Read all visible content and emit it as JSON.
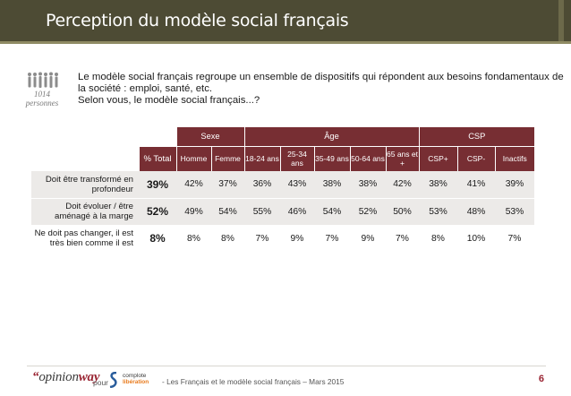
{
  "title": "Perception du modèle social français",
  "sample": {
    "count": "1014",
    "unit": "personnes"
  },
  "question": {
    "intro": "Le modèle social français regroupe un ensemble de dispositifs qui répondent aux besoins fondamentaux de la société : emploi, santé, etc.",
    "ask": "Selon vous, le modèle social français...?"
  },
  "table": {
    "groups": [
      "Sexe",
      "Âge",
      "CSP"
    ],
    "total_label": "% Total",
    "columns": [
      "Homme",
      "Femme",
      "18-24 ans",
      "25-34 ans",
      "35-49 ans",
      "50-64 ans",
      "65 ans et +",
      "CSP+",
      "CSP-",
      "Inactifs"
    ],
    "rows": [
      {
        "label": "Doit être transformé en profondeur",
        "total": "39%",
        "values": [
          "42%",
          "37%",
          "36%",
          "43%",
          "38%",
          "38%",
          "42%",
          "38%",
          "41%",
          "39%"
        ]
      },
      {
        "label": "Doit évoluer / être aménagé à la marge",
        "total": "52%",
        "values": [
          "49%",
          "54%",
          "55%",
          "46%",
          "54%",
          "52%",
          "50%",
          "53%",
          "48%",
          "53%"
        ]
      },
      {
        "label": "Ne doit pas changer, il est très bien comme il est",
        "total": "8%",
        "values": [
          "8%",
          "8%",
          "7%",
          "9%",
          "7%",
          "9%",
          "7%",
          "8%",
          "10%",
          "7%"
        ]
      }
    ]
  },
  "footer": {
    "logo_mark": "“",
    "logo_opinion": "opinion",
    "logo_way": "way",
    "pour": "pour",
    "partner_line1": "complote",
    "partner_line2": "libération",
    "text": "- Les Français et le modèle social français – Mars 2015",
    "page": "6"
  },
  "colors": {
    "title_bg": "#4d4b34",
    "header_bg": "#772e33",
    "row_shade": "#eceae8",
    "accent": "#9a2533"
  }
}
